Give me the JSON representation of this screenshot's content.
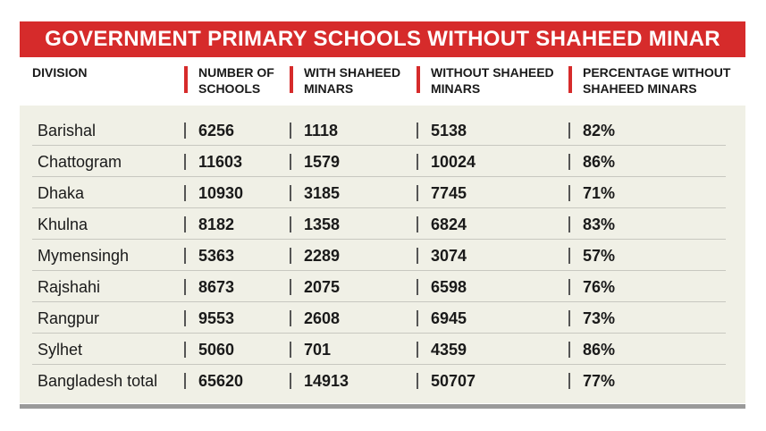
{
  "title": "GOVERNMENT PRIMARY SCHOOLS WITHOUT SHAHEED MINAR",
  "columns": [
    "DIVISION",
    "NUMBER OF\nSCHOOLS",
    "WITH SHAHEED\nMINARS",
    "WITHOUT SHAHEED\nMINARS",
    "PERCENTAGE WITHOUT\nSHAHEED MINARS"
  ],
  "rows": [
    [
      "Barishal",
      "6256",
      "1118",
      "5138",
      "82%"
    ],
    [
      "Chattogram",
      "11603",
      "1579",
      "10024",
      "86%"
    ],
    [
      "Dhaka",
      "10930",
      "3185",
      "7745",
      "71%"
    ],
    [
      "Khulna",
      "8182",
      "1358",
      "6824",
      "83%"
    ],
    [
      "Mymensingh",
      "5363",
      "2289",
      "3074",
      "57%"
    ],
    [
      "Rajshahi",
      "8673",
      "2075",
      "6598",
      "76%"
    ],
    [
      "Rangpur",
      "9553",
      "2608",
      "6945",
      "73%"
    ],
    [
      "Sylhet",
      "5060",
      "701",
      "4359",
      "86%"
    ],
    [
      "Bangladesh total",
      "65620",
      "14913",
      "50707",
      "77%"
    ]
  ],
  "colors": {
    "accent": "#d62b2b",
    "table_background": "#f0f0e6",
    "text": "#1a1a1a",
    "bottom_rule": "#9a9a9a"
  }
}
